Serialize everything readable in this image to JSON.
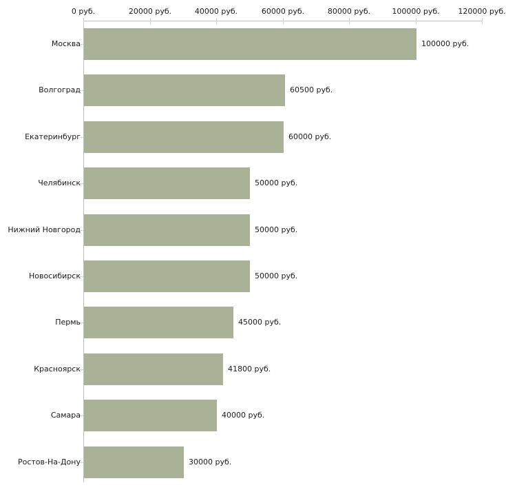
{
  "chart_data": {
    "type": "bar",
    "orientation": "horizontal",
    "title": "",
    "xlabel": "",
    "ylabel": "",
    "unit": "руб.",
    "categories": [
      "Москва",
      "Волгоград",
      "Екатеринбург",
      "Челябинск",
      "Нижний Новгород",
      "Новосибирск",
      "Пермь",
      "Красноярск",
      "Самара",
      "Ростов-На-Дону"
    ],
    "values": [
      100000,
      60500,
      60000,
      50000,
      50000,
      50000,
      45000,
      41800,
      40000,
      30000
    ],
    "value_labels": [
      "100000 руб.",
      "60500 руб.",
      "60000 руб.",
      "50000 руб.",
      "50000 руб.",
      "50000 руб.",
      "45000 руб.",
      "41800 руб.",
      "40000 руб.",
      "30000 руб."
    ],
    "x_ticks": [
      0,
      20000,
      40000,
      60000,
      80000,
      100000,
      120000
    ],
    "x_tick_labels": [
      "0 руб.",
      "20000 руб.",
      "40000 руб.",
      "60000 руб.",
      "80000 руб.",
      "100000 руб.",
      "120000 руб."
    ],
    "xlim": [
      0,
      120000
    ],
    "x_axis_position": "top",
    "grid": false,
    "legend": false,
    "colors": {
      "bar": "#a9b296",
      "axis_line": "#c0c0c0",
      "tick_mark": "#d6d6b4",
      "text": "#1a1a1a",
      "background": "#ffffff"
    }
  }
}
